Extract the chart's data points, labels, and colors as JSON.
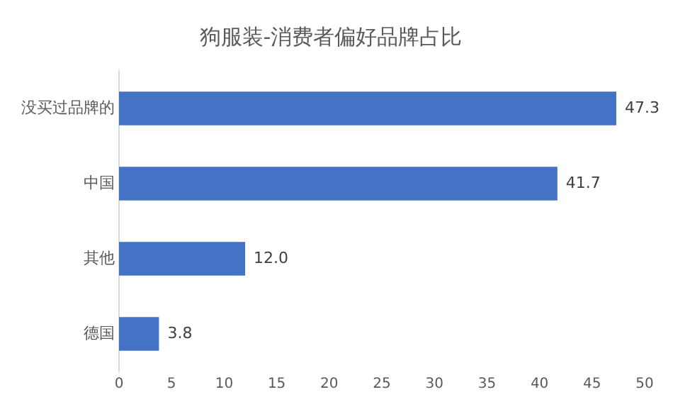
{
  "chart_data": {
    "type": "bar",
    "orientation": "horizontal",
    "title": "狗服装-消费者偏好品牌占比",
    "categories": [
      "没买过品牌的",
      "中国",
      "其他",
      "德国"
    ],
    "values": [
      47.3,
      41.7,
      12.0,
      3.8
    ],
    "value_labels": [
      "47.3",
      "41.7",
      "12.0",
      "3.8"
    ],
    "color": "#4472c4",
    "xlim": [
      0,
      50
    ],
    "xticks": [
      0,
      5,
      10,
      15,
      20,
      25,
      30,
      35,
      40,
      45,
      50
    ],
    "grid": false,
    "legend": false
  }
}
